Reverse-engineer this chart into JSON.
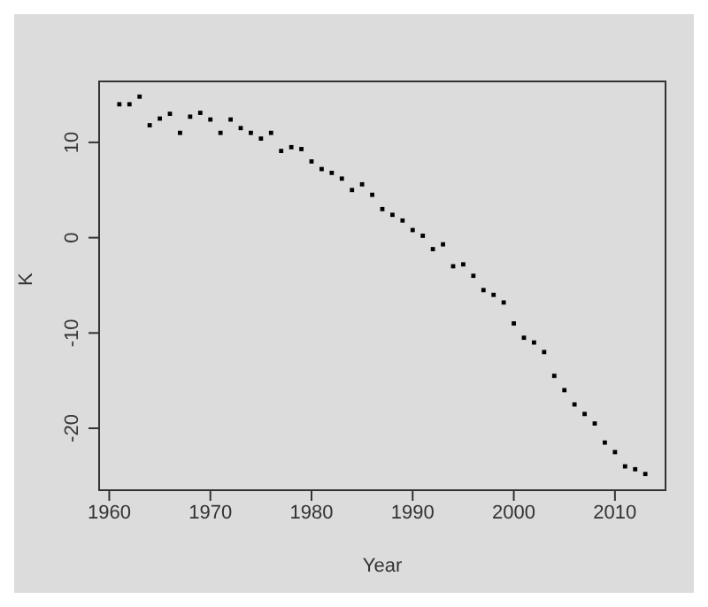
{
  "chart_data": {
    "type": "scatter",
    "xlabel": "Year",
    "ylabel": "K",
    "marker": "square",
    "x": [
      1961,
      1962,
      1963,
      1964,
      1965,
      1966,
      1967,
      1968,
      1969,
      1970,
      1971,
      1972,
      1973,
      1974,
      1975,
      1976,
      1977,
      1978,
      1979,
      1980,
      1981,
      1982,
      1983,
      1984,
      1985,
      1986,
      1987,
      1988,
      1989,
      1990,
      1991,
      1992,
      1993,
      1994,
      1995,
      1996,
      1997,
      1998,
      1999,
      2000,
      2001,
      2002,
      2003,
      2004,
      2005,
      2006,
      2007,
      2008,
      2009,
      2010,
      2011,
      2012,
      2013
    ],
    "series": [
      {
        "color": "#000000",
        "values": [
          14,
          14,
          14.8,
          11.8,
          12.5,
          13,
          11,
          12.7,
          13.1,
          12.4,
          11,
          12.4,
          11.5,
          11,
          10.4,
          11,
          9.1,
          9.5,
          9.3,
          8,
          7.2,
          6.8,
          6.2,
          5,
          5.6,
          4.5,
          3,
          2.4,
          1.8,
          0.8,
          0.2,
          -1.2,
          -0.7,
          -3,
          -2.8,
          -4,
          -5.5,
          -6,
          -6.8,
          -9,
          -10.5,
          -11,
          -12,
          -14.5,
          -16,
          -17.5,
          -18.5,
          -19.5,
          -21.5,
          -22.5,
          -24,
          -24.3,
          -24.8
        ]
      }
    ],
    "xlim": [
      1959,
      2015
    ],
    "xticks": [
      1960,
      1970,
      1980,
      1990,
      2000,
      2010
    ],
    "ylim": [
      -26.5,
      16.4
    ],
    "yticks": [
      -20,
      -10,
      0,
      10
    ]
  }
}
